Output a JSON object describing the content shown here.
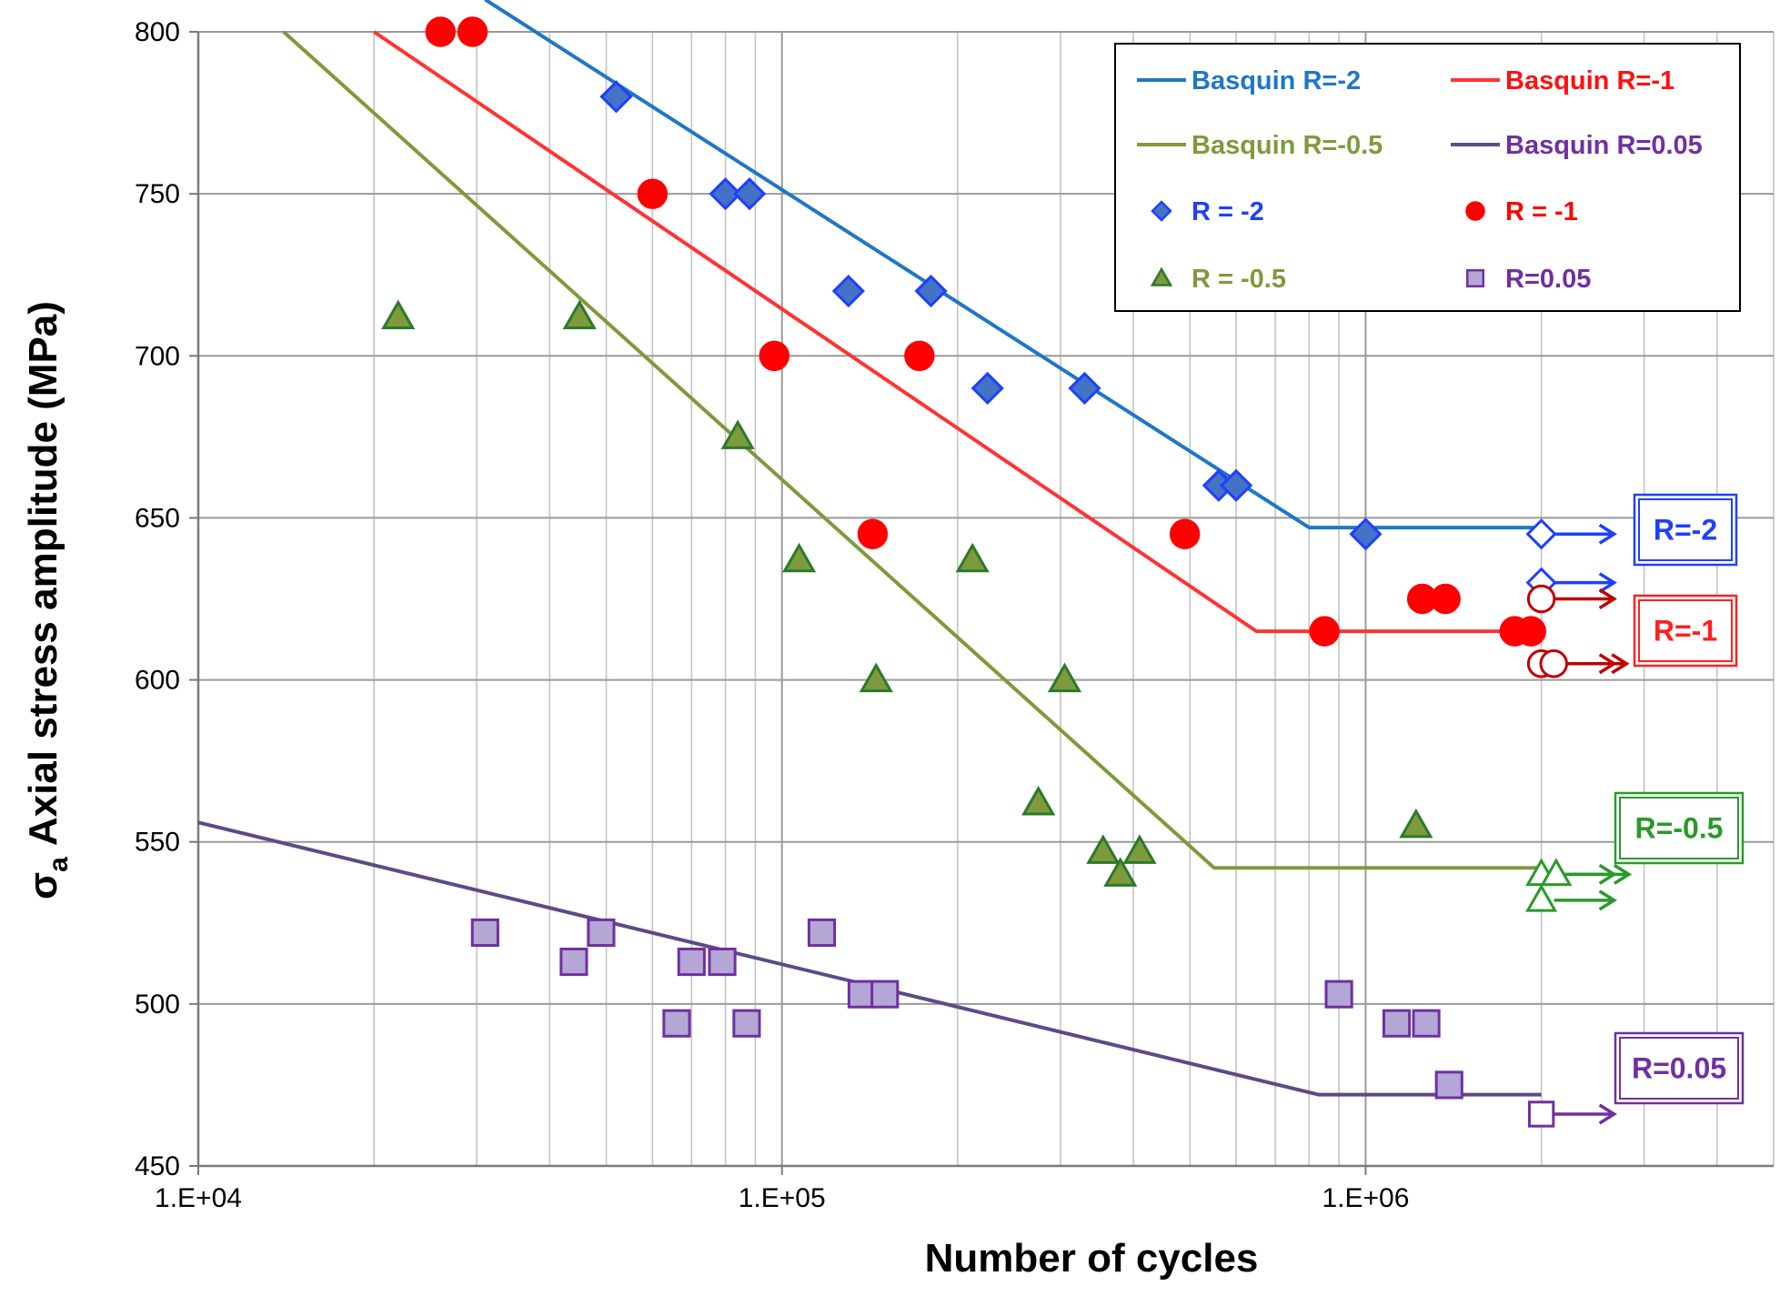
{
  "chart_data": {
    "type": "scatter",
    "title": "",
    "xlabel": "Number of cycles",
    "ylabel_symbol": "σ",
    "ylabel_subscript": "a",
    "ylabel": "Axial stress amplitude (MPa)",
    "x_scale": "log",
    "xlim": [
      10000,
      5000000
    ],
    "ylim": [
      450,
      800
    ],
    "x_ticks": [
      {
        "value": 10000,
        "label": "1.E+04"
      },
      {
        "value": 100000,
        "label": "1.E+05"
      },
      {
        "value": 1000000,
        "label": "1.E+06"
      }
    ],
    "y_ticks": [
      {
        "value": 450,
        "label": "450"
      },
      {
        "value": 500,
        "label": "500"
      },
      {
        "value": 550,
        "label": "550"
      },
      {
        "value": 600,
        "label": "600"
      },
      {
        "value": 650,
        "label": "650"
      },
      {
        "value": 700,
        "label": "700"
      },
      {
        "value": 750,
        "label": "750"
      },
      {
        "value": 800,
        "label": "800"
      }
    ],
    "grid": true,
    "lines": [
      {
        "name": "Basquin R=-2",
        "color": "#1f77c4",
        "points": [
          [
            31000,
            810
          ],
          [
            800000,
            647
          ],
          [
            2000000,
            647
          ]
        ]
      },
      {
        "name": "Basquin R=-1",
        "color": "#ff3333",
        "points": [
          [
            20000,
            800
          ],
          [
            650000,
            615
          ],
          [
            2000000,
            615
          ]
        ]
      },
      {
        "name": "Basquin R=-0.5",
        "color": "#7f9a3c",
        "points": [
          [
            14000,
            800
          ],
          [
            550000,
            542
          ],
          [
            2000000,
            542
          ]
        ]
      },
      {
        "name": "Basquin R=0.05",
        "color": "#5e4a87",
        "points": [
          [
            10000,
            556
          ],
          [
            830000,
            472
          ],
          [
            2000000,
            472
          ]
        ]
      }
    ],
    "series": [
      {
        "name": "R = -2",
        "marker": "diamond",
        "color": "#1f3fff",
        "fill": "#4472c4",
        "points": [
          [
            52000,
            780
          ],
          [
            80000,
            750
          ],
          [
            88000,
            750
          ],
          [
            130000,
            720
          ],
          [
            180000,
            720
          ],
          [
            225000,
            690
          ],
          [
            330000,
            690
          ],
          [
            560000,
            660
          ],
          [
            600000,
            660
          ],
          [
            1000000,
            645
          ]
        ]
      },
      {
        "name": "R = -1",
        "marker": "circle",
        "color": "#ff0000",
        "fill": "#ff0000",
        "points": [
          [
            26000,
            800
          ],
          [
            29500,
            800
          ],
          [
            60000,
            750
          ],
          [
            97000,
            700
          ],
          [
            172000,
            700
          ],
          [
            143000,
            645
          ],
          [
            490000,
            645
          ],
          [
            850000,
            615
          ],
          [
            1250000,
            625
          ],
          [
            1370000,
            625
          ],
          [
            1800000,
            615
          ],
          [
            1920000,
            615
          ]
        ]
      },
      {
        "name": "R = -0.5",
        "marker": "triangle",
        "color": "#2a7a2a",
        "fill": "#7f9a3c",
        "points": [
          [
            22000,
            712
          ],
          [
            45000,
            712
          ],
          [
            84000,
            675
          ],
          [
            107000,
            637
          ],
          [
            212000,
            637
          ],
          [
            145000,
            600
          ],
          [
            305000,
            600
          ],
          [
            275000,
            562
          ],
          [
            355000,
            547
          ],
          [
            410000,
            547
          ],
          [
            380000,
            540
          ],
          [
            1220000,
            555
          ]
        ]
      },
      {
        "name": "R=0.05",
        "marker": "square",
        "color": "#7030a0",
        "fill": "#b4a7d6",
        "points": [
          [
            31000,
            522
          ],
          [
            44000,
            513
          ],
          [
            49000,
            522
          ],
          [
            66000,
            494
          ],
          [
            70000,
            513
          ],
          [
            79000,
            513
          ],
          [
            87000,
            494
          ],
          [
            117000,
            522
          ],
          [
            137000,
            503
          ],
          [
            150000,
            503
          ],
          [
            900000,
            503
          ],
          [
            1130000,
            494
          ],
          [
            1270000,
            494
          ],
          [
            1390000,
            475
          ]
        ]
      }
    ],
    "runouts": [
      {
        "group": "R=-2",
        "color": "#1f3fff",
        "marker": "diamond",
        "points": [
          [
            2000000,
            645
          ],
          [
            2000000,
            630
          ]
        ]
      },
      {
        "group": "R=-1",
        "color": "#c00000",
        "marker": "circle",
        "points": [
          [
            2000000,
            625
          ],
          [
            2000000,
            605
          ],
          [
            2100000,
            605
          ]
        ]
      },
      {
        "group": "R=-0.5",
        "color": "#2a9a2a",
        "marker": "triangle",
        "points": [
          [
            2000000,
            540
          ],
          [
            2120000,
            540
          ],
          [
            2000000,
            532
          ]
        ]
      },
      {
        "group": "R=0.05",
        "color": "#7030a0",
        "marker": "square",
        "points": [
          [
            2000000,
            466
          ]
        ]
      }
    ],
    "legend": {
      "position": "top-right",
      "entries": [
        {
          "label": "Basquin R=-2",
          "kind": "line",
          "color": "#1f77c4",
          "text_color": "#1f77c4"
        },
        {
          "label": "Basquin R=-1",
          "kind": "line",
          "color": "#ff3333",
          "text_color": "#ff1010"
        },
        {
          "label": "Basquin R=-0.5",
          "kind": "line",
          "color": "#7f9a3c",
          "text_color": "#7f9a3c"
        },
        {
          "label": "Basquin R=0.05",
          "kind": "line",
          "color": "#5e4a87",
          "text_color": "#7030a0"
        },
        {
          "label": "R = -2",
          "kind": "diamond",
          "color": "#1f3fff",
          "fill": "#4472c4",
          "text_color": "#1f3fff"
        },
        {
          "label": "R = -1",
          "kind": "circle",
          "color": "#ff0000",
          "fill": "#ff0000",
          "text_color": "#ff0000"
        },
        {
          "label": "R = -0.5",
          "kind": "triangle",
          "color": "#2a7a2a",
          "fill": "#7f9a3c",
          "text_color": "#7f9a3c"
        },
        {
          "label": "R=0.05",
          "kind": "square",
          "color": "#7030a0",
          "fill": "#b4a7d6",
          "text_color": "#7030a0"
        }
      ]
    },
    "annotations": [
      {
        "text": "R=-2",
        "color": "#1f3fff",
        "y_value": 645
      },
      {
        "text": "R=-1",
        "color": "#ff2020",
        "y_value": 615
      },
      {
        "text": "R=-0.5",
        "color": "#2a9a2a",
        "y_value": 540
      },
      {
        "text": "R=0.05",
        "color": "#7030a0",
        "y_value": 465
      }
    ]
  }
}
